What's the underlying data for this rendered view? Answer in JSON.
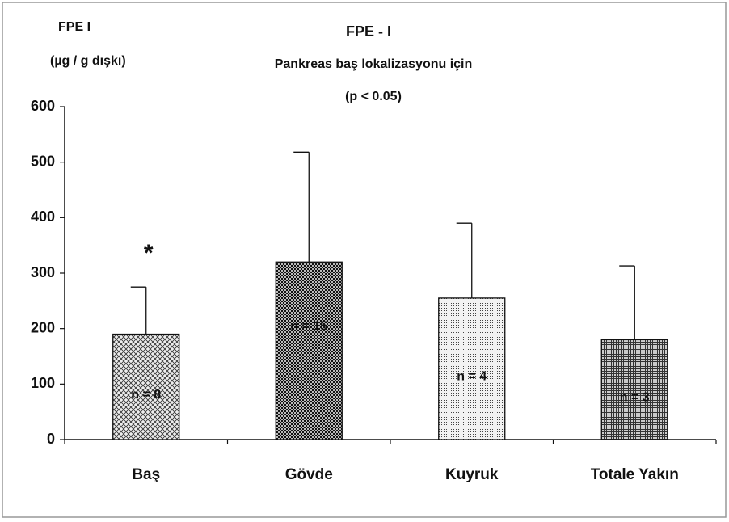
{
  "chart_data": {
    "type": "bar",
    "title": "FPE - I",
    "subtitle": "Pankreas baş lokalizasyonu için",
    "note": "(p < 0.05)",
    "y_label": [
      "FPE  I",
      "(µg / g dışkı)"
    ],
    "categories": [
      "Baş",
      "Gövde",
      "Kuyruk",
      "Totale Yakın"
    ],
    "values": [
      190,
      320,
      255,
      180
    ],
    "errors": [
      85,
      198,
      135,
      133
    ],
    "bar_labels": [
      "n = 8",
      "n = 15",
      "n = 4",
      "n = 3"
    ],
    "patterns": [
      "crosshatch",
      "checker",
      "dots",
      "grid"
    ],
    "annotations": [
      {
        "text": "*",
        "category": "Baş"
      }
    ],
    "ylim": [
      0,
      600
    ],
    "yticks": [
      0,
      100,
      200,
      300,
      400,
      500,
      600
    ],
    "grid": false
  }
}
